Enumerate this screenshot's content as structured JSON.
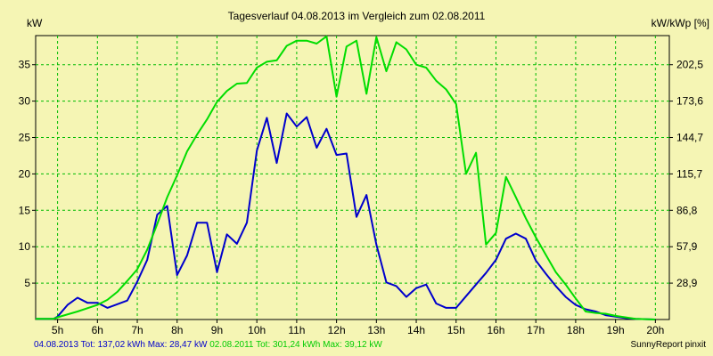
{
  "chart_data": {
    "type": "line",
    "title": "Tagesverlauf 04.08.2013 im Vergleich zum 02.08.2011",
    "ylabel_left": "kW",
    "ylabel_right": "kW/kWp [%]",
    "x_unit": "h",
    "xlim": [
      4.45,
      20.35
    ],
    "ylim": [
      0,
      39
    ],
    "x_ticks": [
      "5h",
      "6h",
      "7h",
      "8h",
      "9h",
      "10h",
      "11h",
      "12h",
      "13h",
      "14h",
      "15h",
      "16h",
      "17h",
      "18h",
      "19h",
      "20h"
    ],
    "y_ticks_left": [
      5,
      10,
      15,
      20,
      25,
      30,
      35
    ],
    "y_ticks_right": [
      "28,9",
      "57,9",
      "86,8",
      "115,7",
      "144,7",
      "173,6",
      "202,5"
    ],
    "grid": true,
    "series": [
      {
        "name": "04.08.2013",
        "color": "#0000cc",
        "x": [
          4.45,
          4.9,
          5.0,
          5.25,
          5.5,
          5.75,
          6.0,
          6.25,
          6.5,
          6.75,
          7.0,
          7.25,
          7.5,
          7.75,
          8.0,
          8.25,
          8.5,
          8.75,
          9.0,
          9.25,
          9.5,
          9.75,
          10.0,
          10.25,
          10.5,
          10.75,
          11.0,
          11.25,
          11.5,
          11.75,
          12.0,
          12.25,
          12.5,
          12.75,
          13.0,
          13.25,
          13.5,
          13.75,
          14.0,
          14.25,
          14.5,
          14.75,
          15.0,
          15.25,
          15.5,
          15.75,
          16.0,
          16.25,
          16.5,
          16.75,
          17.0,
          17.25,
          17.5,
          17.75,
          18.0,
          18.25,
          18.5,
          18.75,
          19.0,
          19.25,
          19.5,
          20.0
        ],
        "y": [
          0.1,
          0.1,
          0.4,
          2.0,
          3.0,
          2.3,
          2.3,
          1.6,
          2.1,
          2.6,
          5.2,
          8.2,
          14.4,
          15.6,
          6.1,
          8.8,
          13.3,
          13.3,
          6.5,
          11.7,
          10.4,
          13.3,
          23.2,
          27.7,
          21.5,
          28.3,
          26.5,
          27.8,
          23.6,
          26.2,
          22.6,
          22.8,
          14.1,
          17.1,
          10.3,
          5.1,
          4.6,
          3.1,
          4.3,
          4.8,
          2.2,
          1.6,
          1.6,
          3.2,
          4.8,
          6.4,
          8.2,
          11.1,
          11.8,
          11.1,
          8.1,
          6.3,
          4.6,
          3.1,
          2.0,
          1.4,
          1.1,
          0.6,
          0.4,
          0.2,
          0.1,
          0.0
        ]
      },
      {
        "name": "02.08.2011",
        "color": "#00dd00",
        "x": [
          4.45,
          4.9,
          5.0,
          5.5,
          6.0,
          6.25,
          6.5,
          6.75,
          7.0,
          7.25,
          7.5,
          7.75,
          8.0,
          8.25,
          8.5,
          8.75,
          9.0,
          9.25,
          9.5,
          9.75,
          10.0,
          10.25,
          10.5,
          10.75,
          11.0,
          11.25,
          11.5,
          11.75,
          12.0,
          12.25,
          12.5,
          12.75,
          13.0,
          13.25,
          13.5,
          13.75,
          14.0,
          14.25,
          14.5,
          14.75,
          15.0,
          15.25,
          15.5,
          15.75,
          16.0,
          16.25,
          16.5,
          16.75,
          17.0,
          17.25,
          17.5,
          17.75,
          18.0,
          18.25,
          18.5,
          18.75,
          19.0,
          19.5,
          20.0
        ],
        "y": [
          0.1,
          0.1,
          0.3,
          1.1,
          2.0,
          2.7,
          3.8,
          5.3,
          6.9,
          9.6,
          13.1,
          16.8,
          19.8,
          23.1,
          25.4,
          27.5,
          29.9,
          31.4,
          32.4,
          32.5,
          34.6,
          35.4,
          35.6,
          37.6,
          38.3,
          38.3,
          37.9,
          38.9,
          30.6,
          37.5,
          38.3,
          31.0,
          38.8,
          34.1,
          38.1,
          37.1,
          35.0,
          34.6,
          32.8,
          31.6,
          29.6,
          20.0,
          22.9,
          10.3,
          11.9,
          19.6,
          16.8,
          13.9,
          11.3,
          8.9,
          6.5,
          4.8,
          2.9,
          1.1,
          0.9,
          0.8,
          0.5,
          0.1,
          0.0
        ]
      }
    ]
  },
  "footer": {
    "series1_label": "04.08.2013",
    "series1_stats": "Tot: 137,02 kWh Max: 28,47 kW",
    "series2_label": "02.08.2011",
    "series2_stats": "Tot: 301,24 kWh Max: 39,12 kW",
    "credit": "SunnyReport pinxit"
  }
}
